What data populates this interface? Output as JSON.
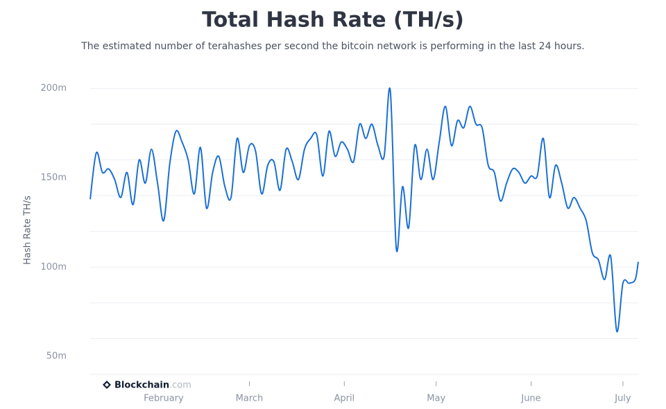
{
  "chart_data": {
    "type": "line",
    "title": "Total Hash Rate (TH/s)",
    "subtitle": "The estimated number of terahashes per second the bitcoin network is performing in the last 24 hours.",
    "y_label": "Hash Rate TH/s",
    "color": "#1a6fd4",
    "x": [
      0,
      2,
      4,
      6,
      8,
      10,
      12,
      14,
      16,
      18,
      20,
      22,
      24,
      26,
      28,
      30,
      32,
      34,
      36,
      38,
      40,
      42,
      44,
      46,
      48,
      50,
      52,
      54,
      56,
      58,
      60,
      62,
      64,
      66,
      68,
      70,
      72,
      74,
      76,
      78,
      80,
      82,
      84,
      86,
      88,
      90,
      92,
      94,
      96,
      98,
      100,
      102,
      104,
      106,
      108,
      110,
      112,
      114,
      116,
      118,
      120,
      122,
      124,
      126,
      128,
      130,
      132,
      134,
      136,
      138,
      140,
      142,
      144,
      146,
      148,
      150,
      152,
      154,
      156,
      158,
      160,
      162,
      164,
      166,
      168,
      170,
      172,
      174,
      176,
      178,
      179
    ],
    "values": [
      138,
      164,
      153,
      155,
      149,
      139,
      153,
      135,
      160,
      147,
      166,
      147,
      126,
      158,
      176,
      170,
      160,
      141,
      167,
      133,
      153,
      162,
      145,
      139,
      172,
      153,
      168,
      165,
      141,
      157,
      159,
      143,
      166,
      159,
      149,
      166,
      172,
      174,
      151,
      176,
      162,
      170,
      166,
      159,
      180,
      172,
      180,
      168,
      162,
      199,
      110,
      145,
      122,
      168,
      149,
      166,
      149,
      170,
      190,
      168,
      182,
      178,
      190,
      180,
      178,
      157,
      153,
      137,
      147,
      155,
      153,
      147,
      151,
      151,
      172,
      139,
      157,
      147,
      133,
      139,
      133,
      126,
      108,
      104,
      93,
      106,
      64,
      91,
      91,
      93,
      103
    ],
    "xlim": [
      0,
      179
    ],
    "xticks": [
      {
        "value": 24,
        "label": "February"
      },
      {
        "value": 52,
        "label": "March"
      },
      {
        "value": 83,
        "label": "April"
      },
      {
        "value": 113,
        "label": "May"
      },
      {
        "value": 144,
        "label": "June"
      },
      {
        "value": 174,
        "label": "July"
      }
    ],
    "ylim": [
      40,
      201
    ],
    "yticks": [
      {
        "value": 50,
        "label": "50m"
      },
      {
        "value": 100,
        "label": "100m"
      },
      {
        "value": 150,
        "label": "150m"
      },
      {
        "value": 200,
        "label": "200m"
      }
    ],
    "ygrid": [
      40,
      60,
      80,
      100,
      120,
      140,
      160,
      180,
      200
    ]
  },
  "watermark": {
    "brand": "Blockchain",
    "suffix": ".com"
  }
}
